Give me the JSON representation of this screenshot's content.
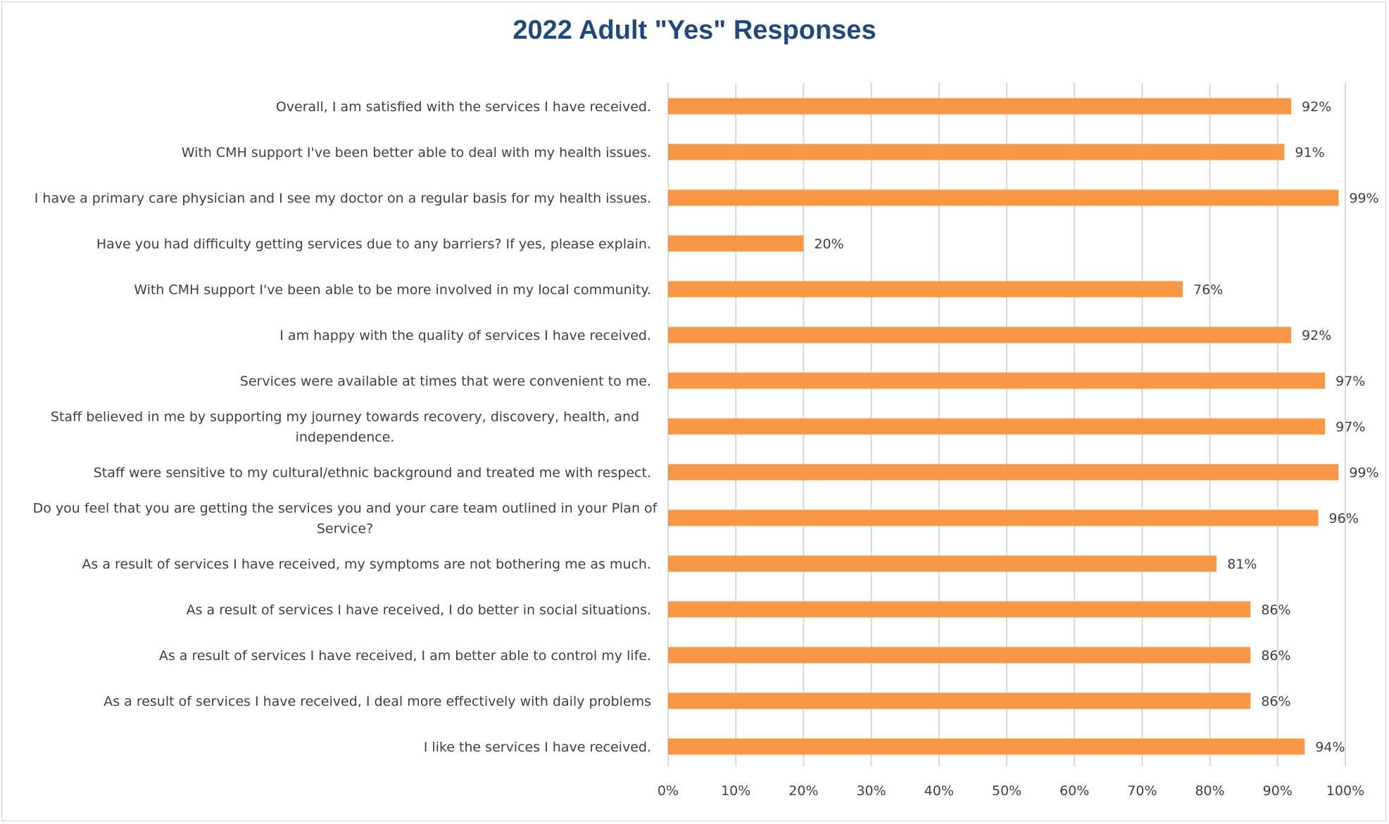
{
  "chart_data": {
    "type": "bar",
    "orientation": "horizontal",
    "title": "2022 Adult \"Yes\" Responses",
    "categories": [
      [
        "Overall, I am satisfied with the services I have received."
      ],
      [
        "With CMH support I've been better able to deal with my health issues."
      ],
      [
        "I have a primary care physician and I see my doctor on a regular basis for my health issues."
      ],
      [
        "Have you had difficulty getting services due to any barriers? If yes, please explain."
      ],
      [
        "With CMH support I've been able to be more involved in my local community."
      ],
      [
        "I am happy with the quality of services I have received."
      ],
      [
        "Services were available at times that were convenient to me."
      ],
      [
        "Staff believed in me by supporting my journey towards recovery, discovery, health, and",
        "independence."
      ],
      [
        "Staff were sensitive to my cultural/ethnic background and treated me with respect."
      ],
      [
        "Do you feel that you are getting the services you and your care team outlined in your Plan of",
        "Service?"
      ],
      [
        "As a result of services I have received, my symptoms are not bothering me as much."
      ],
      [
        "As a result of services I have received, I do better in social situations."
      ],
      [
        "As a result of services I have received, I am better able to control my life."
      ],
      [
        "As a result of services I have received, I deal more effectively with daily problems"
      ],
      [
        "I like the services I have received."
      ]
    ],
    "values": [
      0.92,
      0.91,
      0.99,
      0.2,
      0.76,
      0.92,
      0.97,
      0.97,
      0.99,
      0.96,
      0.81,
      0.86,
      0.86,
      0.86,
      0.94
    ],
    "data_labels": [
      "92%",
      "91%",
      "99%",
      "20%",
      "76%",
      "92%",
      "97%",
      "97%",
      "99%",
      "96%",
      "81%",
      "86%",
      "86%",
      "86%",
      "94%"
    ],
    "xlim": [
      0,
      1
    ],
    "x_ticks": [
      "0%",
      "10%",
      "20%",
      "30%",
      "40%",
      "50%",
      "60%",
      "70%",
      "80%",
      "90%",
      "100%"
    ],
    "grid": true,
    "bar_color": "#f79646",
    "grid_color": "#d9d9d9",
    "title_color": "#1f497d"
  }
}
